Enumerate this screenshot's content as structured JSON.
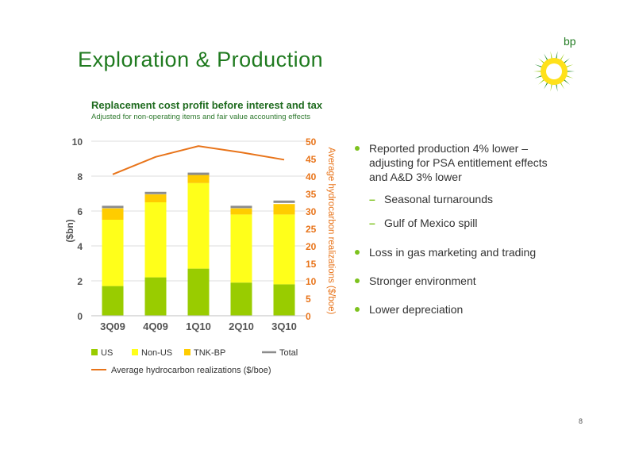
{
  "slide": {
    "title": "Exploration & Production",
    "page_number": "8",
    "logo_text": "bp"
  },
  "bullets": [
    {
      "level": 1,
      "text": "Reported production 4% lower – adjusting for PSA entitlement effects and A&D 3% lower"
    },
    {
      "level": 2,
      "text": "Seasonal turnarounds"
    },
    {
      "level": 2,
      "text": "Gulf of Mexico spill"
    },
    {
      "level": 1,
      "text": "Loss in gas marketing and trading"
    },
    {
      "level": 1,
      "text": "Stronger environment"
    },
    {
      "level": 1,
      "text": "Lower depreciation"
    }
  ],
  "colors": {
    "title": "#1f7a1f",
    "us": "#99cc00",
    "non_us": "#ffff1a",
    "tnk_bp": "#ffcc00",
    "total": "#8c8c8c",
    "avg_line": "#e8741a",
    "bullet": "#7dc21e"
  },
  "chart_data": {
    "type": "bar",
    "stacked": true,
    "title": "Replacement cost profit before interest and tax",
    "subtitle": "Adjusted for non-operating items and fair value accounting effects",
    "categories": [
      "3Q09",
      "4Q09",
      "1Q10",
      "2Q10",
      "3Q10"
    ],
    "ylabel": "($bn)",
    "ylim": [
      0,
      10
    ],
    "yticks": [
      "0",
      "2",
      "4",
      "6",
      "8",
      "10"
    ],
    "y2label": "Average hydrocarbon realizations ($/boe)",
    "y2lim": [
      0,
      50
    ],
    "y2ticks": [
      "0",
      "5",
      "10",
      "15",
      "20",
      "25",
      "30",
      "35",
      "40",
      "45",
      "50"
    ],
    "series": [
      {
        "name": "US",
        "values": [
          1.7,
          2.2,
          2.7,
          1.9,
          1.8
        ]
      },
      {
        "name": "Non-US",
        "values": [
          3.8,
          4.3,
          4.9,
          3.9,
          4.0
        ]
      },
      {
        "name": "TNK-BP",
        "values": [
          0.65,
          0.45,
          0.5,
          0.35,
          0.6
        ]
      },
      {
        "name": "Total",
        "values": [
          6.3,
          7.1,
          8.2,
          6.3,
          6.6
        ]
      }
    ],
    "line_series": {
      "name": "Average hydrocarbon realizations ($/boe)",
      "values": [
        40.5,
        45.5,
        48.6,
        46.8,
        44.7
      ]
    },
    "legend": [
      "US",
      "Non-US",
      "TNK-BP",
      "Total",
      "Average hydrocarbon realizations ($/boe)"
    ]
  }
}
